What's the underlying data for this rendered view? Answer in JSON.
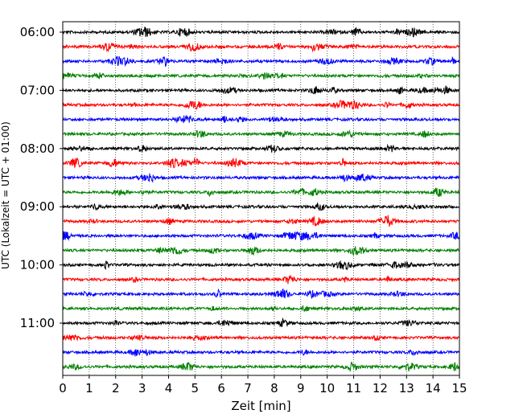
{
  "chart_data": {
    "type": "line",
    "title": "",
    "xlabel": "Zeit  [min]",
    "ylabel": "UTC (Lokalzeit = UTC + 01:00)",
    "xlim": [
      0,
      15
    ],
    "x_ticks": [
      "0",
      "1",
      "2",
      "3",
      "4",
      "5",
      "6",
      "7",
      "8",
      "9",
      "10",
      "11",
      "12",
      "13",
      "14",
      "15"
    ],
    "y_tick_labels": [
      "06:00",
      "07:00",
      "08:00",
      "09:00",
      "10:00",
      "11:00"
    ],
    "trace_start": "06:00",
    "trace_end": "11:45",
    "trace_interval_minutes": 15,
    "trace_colors": [
      "#000000",
      "#ff0000",
      "#0000ff",
      "#008000"
    ],
    "grid": "vertical dotted lines at each minute"
  }
}
